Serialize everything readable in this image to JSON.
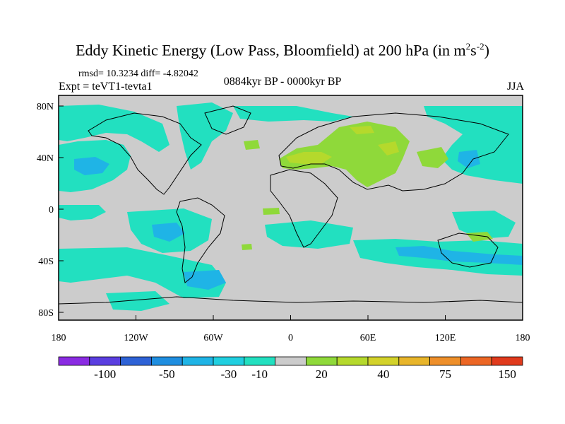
{
  "title": {
    "main": "Eddy Kinetic Energy (Low Pass, Bloomfield) at 200 hPa (in m",
    "sup1": "2",
    "mid": "s",
    "sup2": "-2",
    "end": ")"
  },
  "stats": "rmsd= 10.3234 diff= -4.82042",
  "expt": "Expt = teVT1-tevta1",
  "period": "0884kyr BP - 0000kyr BP",
  "season": "JJA",
  "axes": {
    "lon_ticks": [
      "180",
      "120W",
      "60W",
      "0",
      "60E",
      "120E",
      "180"
    ],
    "lat_ticks": [
      "80N",
      "40N",
      "0",
      "40S",
      "80S"
    ]
  },
  "colorbar": {
    "colors": [
      "#8a2be2",
      "#5a3ee0",
      "#2e62d6",
      "#1f8ee0",
      "#1fb4e6",
      "#20cfe0",
      "#22e0c0",
      "#cccccc",
      "#8fd93a",
      "#b5d92c",
      "#d3d22a",
      "#e8b52a",
      "#ee8f2a",
      "#ec6624",
      "#e03a1c"
    ],
    "labels": [
      "-100",
      "-50",
      "-30",
      "-10",
      "20",
      "40",
      "75",
      "150"
    ]
  },
  "palette": {
    "land_bg": "#cccccc",
    "negative_small": "#22e0c0",
    "negative_mid": "#1fb4e6",
    "positive_small": "#8fd93a",
    "positive_mid": "#b5d92c",
    "coast": "#000000"
  }
}
